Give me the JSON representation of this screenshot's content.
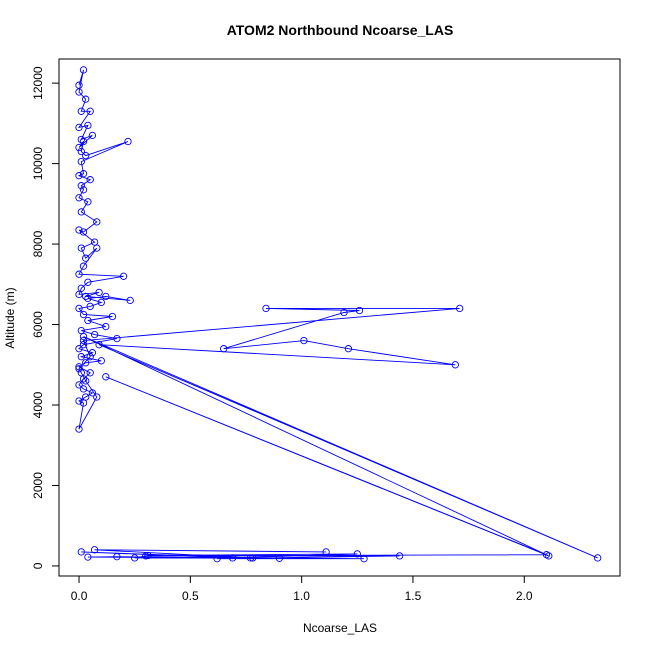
{
  "chart_data": {
    "type": "line",
    "title": "ATOM2 Northbound Ncoarse_LAS",
    "xlabel": "Ncoarse_LAS",
    "ylabel": "Altitude (m)",
    "xlim": [
      -0.09,
      2.43
    ],
    "ylim": [
      -250,
      12600
    ],
    "xticks": [
      0.0,
      0.5,
      1.0,
      1.5,
      2.0
    ],
    "xtick_labels": [
      "0.0",
      "0.5",
      "1.0",
      "1.5",
      "2.0"
    ],
    "yticks": [
      0,
      2000,
      4000,
      6000,
      8000,
      10000,
      12000
    ],
    "ytick_labels": [
      "0",
      "2000",
      "4000",
      "6000",
      "8000",
      "10000",
      "12000"
    ],
    "grid": false,
    "marker": "open-circle",
    "colors": {
      "series": "#0000ff",
      "axis": "#000000",
      "background": "#ffffff"
    },
    "series": [
      {
        "x": [
          0.0,
          0.02,
          0.0,
          0.03,
          0.01,
          0.05,
          0.0,
          0.04,
          0.01,
          0.06,
          0.0,
          0.02,
          0.01,
          0.03,
          0.22,
          0.01,
          0.02,
          0.0,
          0.05,
          0.01,
          0.02,
          0.0,
          0.04,
          0.01,
          0.08,
          0.02,
          0.0,
          0.07,
          0.01,
          0.03,
          0.08,
          0.02,
          0.0,
          0.2,
          0.04,
          0.01,
          0.0,
          0.09,
          0.03,
          0.23,
          0.12,
          0.04,
          0.1,
          0.05,
          0.0,
          0.02,
          0.15,
          0.04,
          0.12,
          0.01,
          0.07,
          0.17,
          0.02,
          0.0,
          0.06,
          0.01,
          0.1,
          0.03,
          0.0,
          0.05,
          0.02,
          0.0,
          0.02,
          0.06,
          0.03,
          0.0,
          0.02,
          0.0,
          0.08,
          0.03,
          0.01,
          0.0,
          0.05,
          0.02,
          1.71,
          0.84,
          1.26,
          1.19,
          0.65,
          1.01,
          1.21,
          1.69,
          0.09,
          2.33,
          0.02,
          2.11,
          0.12,
          2.1,
          0.3,
          1.44,
          0.62,
          1.28,
          0.78,
          0.04,
          0.17,
          0.9,
          0.25,
          0.31,
          1.25,
          0.69,
          0.01,
          0.77,
          0.07,
          1.11
        ],
        "y": [
          11950,
          12330,
          11780,
          11600,
          11300,
          11300,
          10900,
          10950,
          10600,
          10700,
          10400,
          10550,
          10300,
          10200,
          10550,
          10050,
          9750,
          9700,
          9600,
          9450,
          9350,
          9150,
          9050,
          8800,
          8550,
          8300,
          8350,
          8050,
          7900,
          7650,
          7900,
          7450,
          7250,
          7200,
          7050,
          6900,
          6750,
          6800,
          6700,
          6600,
          6700,
          6650,
          6550,
          6450,
          6400,
          6250,
          6200,
          6100,
          5950,
          5850,
          5750,
          5650,
          5500,
          5400,
          5300,
          5200,
          5100,
          5050,
          4950,
          4800,
          4650,
          4500,
          4400,
          4300,
          4200,
          4100,
          4050,
          3400,
          4200,
          4600,
          4800,
          4900,
          5200,
          5600,
          6400,
          6400,
          6350,
          6300,
          5400,
          5600,
          5400,
          5000,
          5500,
          200,
          5700,
          250,
          4700,
          280,
          250,
          250,
          180,
          180,
          200,
          220,
          230,
          190,
          200,
          260,
          300,
          200,
          350,
          200,
          400,
          350
        ]
      }
    ]
  }
}
